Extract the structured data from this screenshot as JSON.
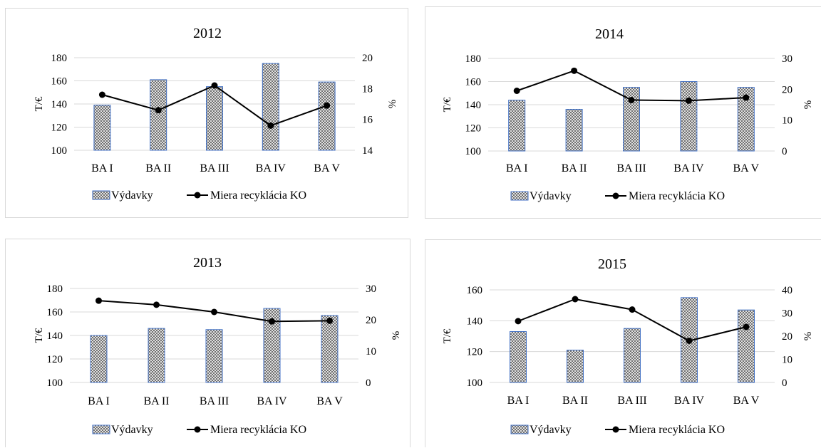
{
  "colors": {
    "bar_fill": "#c9c9c9",
    "bar_stroke": "#4472c4",
    "line": "#000000",
    "grid": "#d9d9d9"
  },
  "chart_data": [
    {
      "type": "bar",
      "title": "2012",
      "categories": [
        "BA I",
        "BA II",
        "BA III",
        "BA IV",
        "BA V"
      ],
      "ylabel": "T/€",
      "ylim": [
        100,
        180
      ],
      "yticks": [
        100,
        120,
        140,
        160,
        180
      ],
      "y2label": "%",
      "y2lim": [
        14,
        20
      ],
      "y2ticks": [
        14,
        16,
        18,
        20
      ],
      "grid": true,
      "legend_position": "bottom",
      "series": [
        {
          "name": "Výdavky",
          "type": "bar",
          "axis": "left",
          "values": [
            139,
            161,
            155,
            175,
            159
          ]
        },
        {
          "name": "Miera recyklácia KO",
          "type": "line",
          "axis": "right",
          "values": [
            17.6,
            16.6,
            18.2,
            15.6,
            16.9
          ]
        }
      ]
    },
    {
      "type": "bar",
      "title": "2014",
      "categories": [
        "BA I",
        "BA II",
        "BA III",
        "BA IV",
        "BA V"
      ],
      "ylabel": "T/€",
      "ylim": [
        100,
        180
      ],
      "yticks": [
        100,
        120,
        140,
        160,
        180
      ],
      "y2label": "%",
      "y2lim": [
        0,
        30
      ],
      "y2ticks": [
        0,
        10,
        20,
        30
      ],
      "grid": true,
      "legend_position": "bottom",
      "series": [
        {
          "name": "Výdavky",
          "type": "bar",
          "axis": "left",
          "values": [
            144,
            136,
            155,
            160,
            155
          ]
        },
        {
          "name": "Miera recyklácia KO",
          "type": "line",
          "axis": "right",
          "values": [
            19.5,
            26,
            16.5,
            16.3,
            17.3
          ]
        }
      ]
    },
    {
      "type": "bar",
      "title": "2013",
      "categories": [
        "BA I",
        "BA II",
        "BA III",
        "BA IV",
        "BA V"
      ],
      "ylabel": "T/€",
      "ylim": [
        100,
        180
      ],
      "yticks": [
        100,
        120,
        140,
        160,
        180
      ],
      "y2label": "%",
      "y2lim": [
        0,
        30
      ],
      "y2ticks": [
        0,
        10,
        20,
        30
      ],
      "grid": true,
      "legend_position": "bottom",
      "series": [
        {
          "name": "Výdavky",
          "type": "bar",
          "axis": "left",
          "values": [
            140,
            146,
            145,
            163,
            157
          ]
        },
        {
          "name": "Miera recyklácia KO",
          "type": "line",
          "axis": "right",
          "values": [
            26.1,
            24.8,
            22.5,
            19.5,
            19.7
          ]
        }
      ]
    },
    {
      "type": "bar",
      "title": "2015",
      "categories": [
        "BA I",
        "BA II",
        "BA III",
        "BA IV",
        "BA V"
      ],
      "ylabel": "T/€",
      "ylim": [
        100,
        160
      ],
      "yticks": [
        100,
        120,
        140,
        160
      ],
      "y2label": "%",
      "y2lim": [
        0,
        40
      ],
      "y2ticks": [
        0,
        10,
        20,
        30,
        40
      ],
      "grid": true,
      "legend_position": "bottom",
      "series": [
        {
          "name": "Výdavky",
          "type": "bar",
          "axis": "left",
          "values": [
            133,
            121,
            135,
            155,
            147
          ]
        },
        {
          "name": "Miera recyklácia KO",
          "type": "line",
          "axis": "right",
          "values": [
            26.5,
            36,
            31.5,
            18,
            24
          ]
        }
      ]
    }
  ]
}
